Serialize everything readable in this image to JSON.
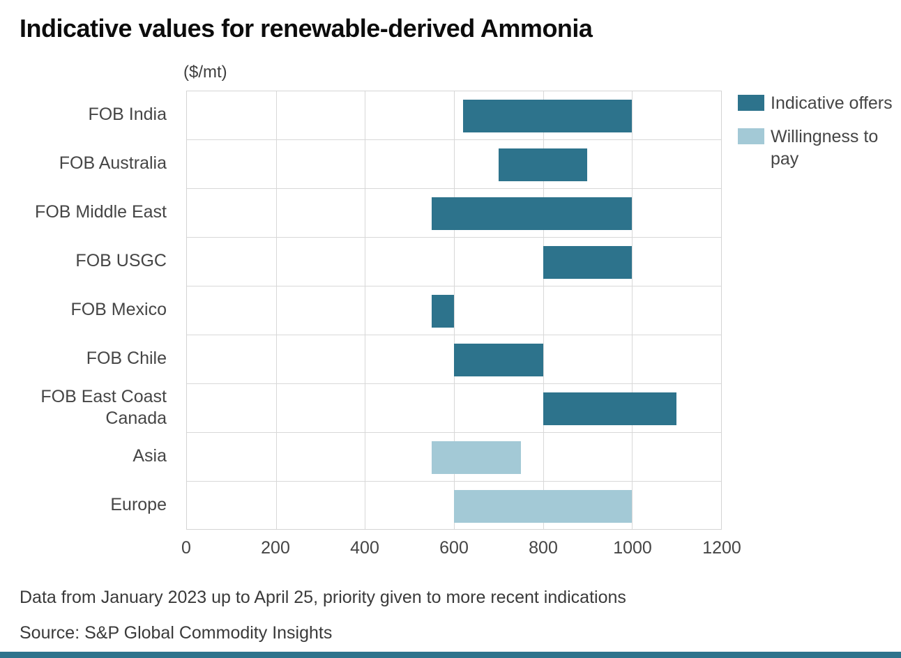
{
  "title": "Indicative values for renewable-derived Ammonia",
  "unit_label": "($/mt)",
  "legend": [
    {
      "label": "Indicative offers",
      "color": "#2d738c"
    },
    {
      "label": "Willingness to pay",
      "color": "#a3c9d6"
    }
  ],
  "footer": {
    "note": "Data from January 2023 up to April 25, priority given to more recent indications",
    "source": "Source: S&P Global Commodity Insights"
  },
  "accent_strip_color": "#2d738c",
  "chart_data": {
    "type": "bar",
    "orientation": "horizontal",
    "title": "Indicative values for renewable-derived Ammonia",
    "xlabel": "($/mt)",
    "xlim": [
      0,
      1200
    ],
    "xticks": [
      0,
      200,
      400,
      600,
      800,
      1000,
      1200
    ],
    "grid": true,
    "legend_position": "top-right",
    "series": [
      {
        "name": "Indicative offers",
        "color": "#2d738c"
      },
      {
        "name": "Willingness to pay",
        "color": "#a3c9d6"
      }
    ],
    "bars": [
      {
        "category": "FOB India",
        "range": [
          620,
          1000
        ],
        "series": "Indicative offers",
        "series_index": 0
      },
      {
        "category": "FOB Australia",
        "range": [
          700,
          900
        ],
        "series": "Indicative offers",
        "series_index": 0
      },
      {
        "category": "FOB Middle East",
        "range": [
          550,
          1000
        ],
        "series": "Indicative offers",
        "series_index": 0
      },
      {
        "category": "FOB USGC",
        "range": [
          800,
          1000
        ],
        "series": "Indicative offers",
        "series_index": 0
      },
      {
        "category": "FOB Mexico",
        "range": [
          550,
          600
        ],
        "series": "Indicative offers",
        "series_index": 0
      },
      {
        "category": "FOB Chile",
        "range": [
          600,
          800
        ],
        "series": "Indicative offers",
        "series_index": 0
      },
      {
        "category": "FOB East Coast Canada",
        "range": [
          800,
          1100
        ],
        "series": "Indicative offers",
        "series_index": 0
      },
      {
        "category": "Asia",
        "range": [
          550,
          750
        ],
        "series": "Willingness to pay",
        "series_index": 1
      },
      {
        "category": "Europe",
        "range": [
          600,
          1000
        ],
        "series": "Willingness to pay",
        "series_index": 1
      }
    ]
  }
}
